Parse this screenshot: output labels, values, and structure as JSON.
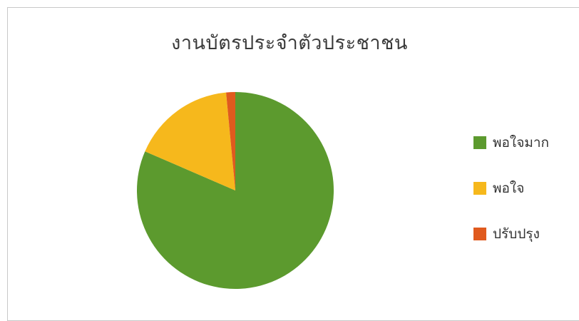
{
  "chart_data": {
    "type": "pie",
    "title": "งานบัตรประจำตัวประชาชน",
    "series": [
      {
        "name": "พอใจมาก",
        "value": 81.5,
        "color": "#5c9a2e"
      },
      {
        "name": "พอใจ",
        "value": 17.0,
        "color": "#f6b81c"
      },
      {
        "name": "ปรับปรุง",
        "value": 1.5,
        "color": "#e05a1e"
      }
    ],
    "legend_position": "right"
  }
}
